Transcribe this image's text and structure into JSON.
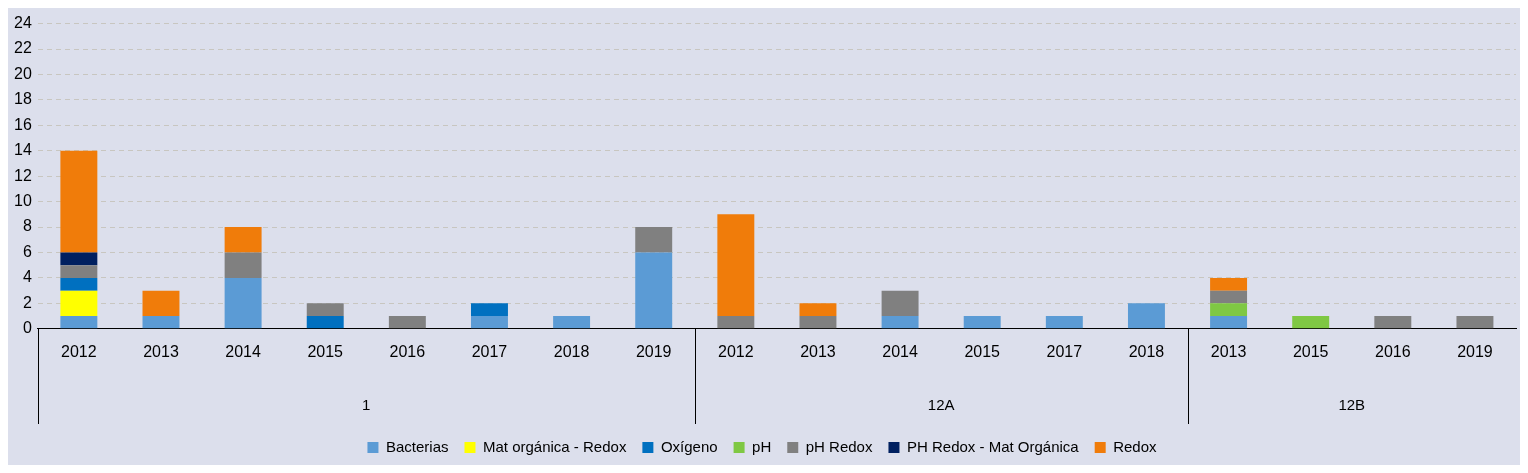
{
  "chart_data": {
    "type": "bar",
    "stacked": true,
    "categories": [
      "2012",
      "2013",
      "2014",
      "2015",
      "2016",
      "2017",
      "2018",
      "2019",
      "2012",
      "2013",
      "2014",
      "2015",
      "2017",
      "2018",
      "2013",
      "2015",
      "2016",
      "2019"
    ],
    "series": [
      {
        "name": "Bacterias",
        "color": "#5b9bd5",
        "values": [
          1,
          1,
          4,
          null,
          null,
          1,
          1,
          6,
          null,
          null,
          1,
          1,
          1,
          2,
          1,
          null,
          null,
          null
        ]
      },
      {
        "name": "Mat orgánica - Redox",
        "color": "#ffff00",
        "values": [
          2,
          null,
          null,
          null,
          null,
          null,
          null,
          null,
          null,
          null,
          null,
          null,
          null,
          null,
          null,
          null,
          null,
          null
        ]
      },
      {
        "name": "Oxígeno",
        "color": "#0070c0",
        "values": [
          1,
          null,
          null,
          1,
          null,
          1,
          null,
          null,
          null,
          null,
          null,
          null,
          null,
          null,
          null,
          null,
          null,
          null
        ]
      },
      {
        "name": "pH",
        "color": "#7fc843",
        "values": [
          null,
          null,
          null,
          null,
          null,
          null,
          null,
          null,
          null,
          null,
          null,
          null,
          null,
          null,
          1,
          1,
          null,
          null
        ]
      },
      {
        "name": "pH Redox",
        "color": "#808080",
        "values": [
          1,
          null,
          2,
          1,
          1,
          null,
          null,
          2,
          1,
          1,
          2,
          null,
          null,
          null,
          1,
          null,
          1,
          1
        ]
      },
      {
        "name": "PH Redox - Mat Orgánica",
        "color": "#002060",
        "values": [
          1,
          null,
          null,
          null,
          null,
          null,
          null,
          null,
          null,
          null,
          null,
          null,
          null,
          null,
          null,
          null,
          null,
          null
        ]
      },
      {
        "name": "Redox",
        "color": "#f07c0a",
        "values": [
          8,
          2,
          2,
          null,
          null,
          null,
          null,
          null,
          8,
          1,
          null,
          null,
          null,
          null,
          1,
          null,
          null,
          null
        ]
      }
    ],
    "ylim": [
      0,
      24
    ],
    "yticks": [
      0,
      2,
      4,
      6,
      8,
      10,
      12,
      14,
      16,
      18,
      20,
      22,
      24
    ],
    "grid": "y",
    "legend": "bottom",
    "annotations": [
      "1",
      "12A",
      "12B"
    ]
  }
}
